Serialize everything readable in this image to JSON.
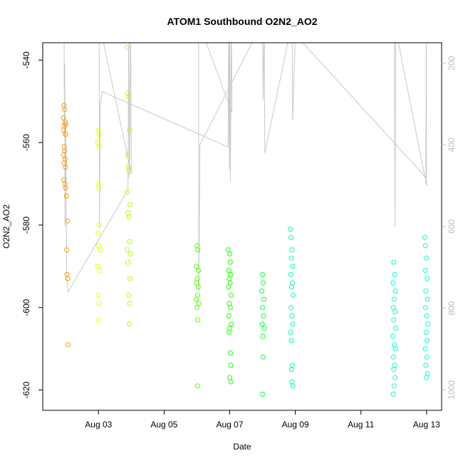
{
  "chart_data": {
    "type": "scatter",
    "title": "ATOM1 Southbound O2N2_AO2",
    "xlabel": "Date",
    "ylabel": "O2N2_AO2",
    "x_ticks": [
      {
        "x": 3.0,
        "label": "Aug 03"
      },
      {
        "x": 5.0,
        "label": "Aug 05"
      },
      {
        "x": 7.0,
        "label": "Aug 07"
      },
      {
        "x": 9.0,
        "label": "Aug 09"
      },
      {
        "x": 11.0,
        "label": "Aug 11"
      },
      {
        "x": 13.0,
        "label": "Aug 13"
      }
    ],
    "xlim": [
      1.3,
      13.46
    ],
    "ylim": [
      -624.9,
      -535.8
    ],
    "y_ticks": [
      -540,
      -560,
      -580,
      -600,
      -620
    ],
    "y2lim": [
      1050,
      150
    ],
    "y2_ticks": [
      200,
      400,
      600,
      800,
      1000
    ],
    "point_colors": {
      "orange": "#FF9900",
      "yellow": "#E6FF00",
      "yellowgreen": "#B3FF00",
      "green": "#4DFF00",
      "brightgreen": "#1AFF00",
      "springgreen": "#00FF33",
      "mint": "#00FF99",
      "cyan": "#00FFD0"
    },
    "line_color": "#c8c8c8",
    "series": [
      {
        "color": "orange",
        "points": [
          [
            1.95,
            -551
          ],
          [
            1.97,
            -552
          ],
          [
            1.93,
            -554
          ],
          [
            1.98,
            -555
          ],
          [
            2.0,
            -555.5
          ],
          [
            1.96,
            -556
          ],
          [
            1.94,
            -557
          ],
          [
            1.99,
            -558
          ],
          [
            1.95,
            -561
          ],
          [
            1.97,
            -562
          ],
          [
            1.93,
            -563
          ],
          [
            1.98,
            -564
          ],
          [
            1.96,
            -565
          ],
          [
            1.99,
            -566
          ],
          [
            1.94,
            -569
          ],
          [
            1.97,
            -570
          ],
          [
            2.0,
            -571
          ],
          [
            2.02,
            -573
          ],
          [
            2.05,
            -579
          ],
          [
            2.03,
            -586
          ],
          [
            2.04,
            -592
          ],
          [
            2.06,
            -593
          ],
          [
            2.07,
            -609
          ]
        ]
      },
      {
        "color": "yellow",
        "points": [
          [
            3.0,
            -557
          ],
          [
            3.02,
            -558
          ],
          [
            2.98,
            -560
          ],
          [
            3.03,
            -561
          ],
          [
            2.99,
            -570
          ],
          [
            3.01,
            -571
          ],
          [
            3.02,
            -580
          ],
          [
            2.99,
            -582
          ],
          [
            3.0,
            -585
          ],
          [
            3.05,
            -586
          ],
          [
            2.98,
            -590
          ],
          [
            3.03,
            -591
          ],
          [
            2.99,
            -597
          ],
          [
            3.02,
            -599
          ],
          [
            3.0,
            -603
          ]
        ]
      },
      {
        "color": "yellowgreen",
        "points": [
          [
            3.88,
            -537
          ],
          [
            3.9,
            -548
          ],
          [
            3.92,
            -549
          ],
          [
            3.95,
            -557
          ],
          [
            3.89,
            -563
          ],
          [
            3.91,
            -566
          ],
          [
            3.94,
            -567
          ],
          [
            3.87,
            -572
          ],
          [
            3.96,
            -575
          ],
          [
            3.9,
            -577
          ],
          [
            3.93,
            -578
          ],
          [
            3.95,
            -584
          ],
          [
            3.88,
            -586
          ],
          [
            3.97,
            -587
          ],
          [
            3.9,
            -589
          ],
          [
            3.96,
            -593
          ],
          [
            3.92,
            -597
          ],
          [
            3.95,
            -599
          ],
          [
            3.94,
            -604
          ]
        ]
      },
      {
        "color": "green",
        "points": [
          [
            6.0,
            -585
          ],
          [
            6.03,
            -586
          ],
          [
            5.98,
            -590
          ],
          [
            6.05,
            -591
          ],
          [
            6.01,
            -593
          ],
          [
            5.99,
            -594
          ],
          [
            6.04,
            -595
          ],
          [
            6.02,
            -597
          ],
          [
            5.98,
            -598
          ],
          [
            6.06,
            -599
          ],
          [
            6.0,
            -600
          ],
          [
            6.03,
            -603
          ],
          [
            6.02,
            -619
          ]
        ]
      },
      {
        "color": "brightgreen",
        "points": [
          [
            6.95,
            -586
          ],
          [
            7.0,
            -587
          ],
          [
            7.02,
            -589
          ],
          [
            6.97,
            -591
          ],
          [
            7.03,
            -592
          ],
          [
            6.98,
            -593
          ],
          [
            7.01,
            -594
          ],
          [
            6.96,
            -595
          ],
          [
            7.04,
            -597
          ],
          [
            6.99,
            -599
          ],
          [
            7.02,
            -600
          ],
          [
            6.97,
            -602
          ],
          [
            7.05,
            -604
          ],
          [
            7.0,
            -605
          ],
          [
            6.98,
            -606
          ],
          [
            7.02,
            -611
          ],
          [
            7.03,
            -614
          ],
          [
            7.0,
            -617
          ],
          [
            7.04,
            -618
          ]
        ]
      },
      {
        "color": "springgreen",
        "points": [
          [
            8.0,
            -592
          ],
          [
            8.02,
            -594
          ],
          [
            7.98,
            -596
          ],
          [
            8.04,
            -598
          ],
          [
            8.0,
            -600
          ],
          [
            8.03,
            -602
          ],
          [
            7.99,
            -604
          ],
          [
            8.05,
            -605
          ],
          [
            8.01,
            -607
          ],
          [
            8.02,
            -612
          ],
          [
            8.0,
            -621
          ]
        ]
      },
      {
        "color": "mint",
        "points": [
          [
            8.85,
            -581
          ],
          [
            8.87,
            -583
          ],
          [
            8.9,
            -586
          ],
          [
            8.88,
            -588
          ],
          [
            8.92,
            -590
          ],
          [
            8.86,
            -592
          ],
          [
            8.91,
            -594
          ],
          [
            8.89,
            -595
          ],
          [
            8.93,
            -597
          ],
          [
            8.87,
            -600
          ],
          [
            8.9,
            -602
          ],
          [
            8.92,
            -604
          ],
          [
            8.86,
            -606
          ],
          [
            8.88,
            -608
          ],
          [
            8.91,
            -614
          ],
          [
            8.89,
            -615
          ],
          [
            8.9,
            -618
          ],
          [
            8.92,
            -619
          ]
        ]
      },
      {
        "color": "cyan",
        "points": [
          [
            12.0,
            -589
          ],
          [
            12.03,
            -592
          ],
          [
            11.98,
            -594
          ],
          [
            12.05,
            -596
          ],
          [
            12.01,
            -598
          ],
          [
            11.99,
            -600
          ],
          [
            12.04,
            -601
          ],
          [
            12.0,
            -603
          ],
          [
            12.06,
            -605
          ],
          [
            11.97,
            -607
          ],
          [
            12.02,
            -609
          ],
          [
            12.05,
            -610
          ],
          [
            11.99,
            -612
          ],
          [
            12.03,
            -614
          ],
          [
            12.0,
            -615
          ],
          [
            12.04,
            -617
          ],
          [
            12.01,
            -619
          ],
          [
            11.99,
            -621
          ],
          [
            12.95,
            -583
          ],
          [
            12.97,
            -585
          ],
          [
            13.0,
            -588
          ],
          [
            12.96,
            -591
          ],
          [
            13.02,
            -593
          ],
          [
            12.98,
            -596
          ],
          [
            13.03,
            -598
          ],
          [
            12.97,
            -600
          ],
          [
            13.0,
            -602
          ],
          [
            13.04,
            -604
          ],
          [
            12.99,
            -606
          ],
          [
            13.02,
            -608
          ],
          [
            12.96,
            -610
          ],
          [
            13.01,
            -612
          ],
          [
            12.98,
            -614
          ],
          [
            13.03,
            -616
          ],
          [
            13.0,
            -617
          ]
        ]
      }
    ],
    "line_y2": [
      [
        1.95,
        100
      ],
      [
        1.96,
        380
      ],
      [
        1.97,
        200
      ],
      [
        1.98,
        600
      ],
      [
        2.0,
        350
      ],
      [
        2.03,
        720
      ],
      [
        2.07,
        760
      ],
      [
        3.9,
        510
      ],
      [
        3.92,
        100
      ],
      [
        3.94,
        480
      ],
      [
        3.96,
        300
      ],
      [
        3.98,
        100
      ],
      [
        4.0,
        470
      ],
      [
        3.02,
        100
      ],
      [
        3.03,
        600
      ],
      [
        3.05,
        300
      ],
      [
        3.12,
        270
      ],
      [
        6.95,
        405
      ],
      [
        6.97,
        100
      ],
      [
        6.99,
        460
      ],
      [
        7.0,
        110
      ],
      [
        7.02,
        490
      ],
      [
        7.05,
        100
      ],
      [
        7.07,
        320
      ],
      [
        6.05,
        100
      ],
      [
        6.06,
        760
      ],
      [
        6.09,
        400
      ],
      [
        8.0,
        100
      ],
      [
        8.02,
        290
      ],
      [
        8.05,
        100
      ],
      [
        8.07,
        420
      ],
      [
        8.9,
        100
      ],
      [
        8.92,
        340
      ],
      [
        9.0,
        130
      ],
      [
        12.98,
        480
      ],
      [
        12.99,
        100
      ],
      [
        13.0,
        500
      ],
      [
        12.02,
        100
      ],
      [
        12.04,
        600
      ],
      [
        12.06,
        100
      ]
    ]
  }
}
